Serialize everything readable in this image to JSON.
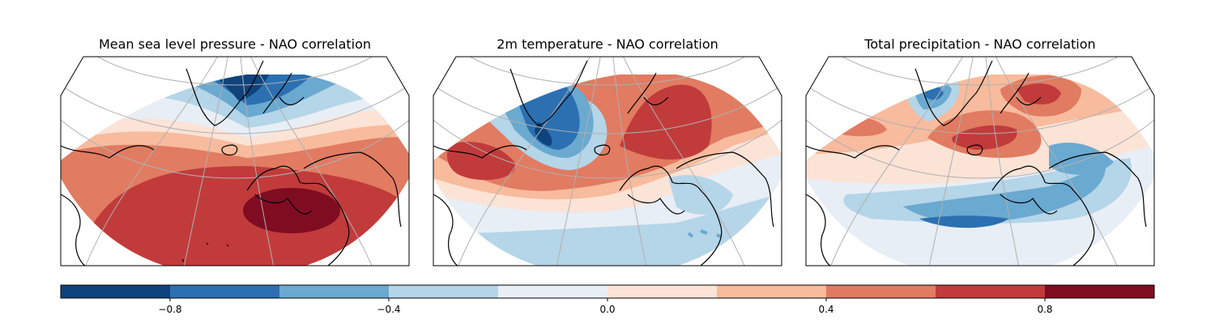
{
  "panels": [
    {
      "title": "Mean sea level pressure - NAO correlation",
      "variable": "mslp"
    },
    {
      "title": "2m temperature - NAO correlation",
      "variable": "t2m"
    },
    {
      "title": "Total precipitation - NAO correlation",
      "variable": "tp"
    }
  ],
  "colorbar": {
    "levels": [
      -1.0,
      -0.8,
      -0.6,
      -0.4,
      -0.2,
      0.0,
      0.2,
      0.4,
      0.6,
      0.8,
      1.0
    ],
    "colors": [
      "#0f437c",
      "#2c70b1",
      "#6aa9d0",
      "#b5d5e8",
      "#e8eef5",
      "#fbe3d6",
      "#f8bb9d",
      "#e17b61",
      "#c13b3b",
      "#800c22"
    ],
    "tick_labels": [
      "−0.8",
      "−0.4",
      "0.0",
      "0.4",
      "0.8"
    ],
    "tick_values": [
      -0.8,
      -0.4,
      0.0,
      0.4,
      0.8
    ]
  }
}
